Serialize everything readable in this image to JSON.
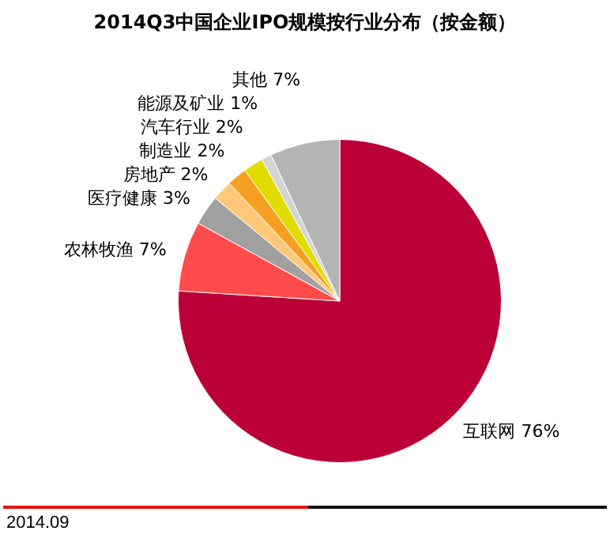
{
  "chart_data": {
    "type": "pie",
    "title": "2014Q3中国企业IPO规模按行业分布（按金额）",
    "categories": [
      "互联网",
      "农林牧渔",
      "医疗健康",
      "房地产",
      "制造业",
      "汽车行业",
      "能源及矿业",
      "其他"
    ],
    "values": [
      76,
      7,
      3,
      2,
      2,
      2,
      1,
      7
    ],
    "value_labels": [
      "76%",
      "7%",
      "3%",
      "2%",
      "2%",
      "2%",
      "1%",
      "7%"
    ],
    "colors": [
      "#bb0038",
      "#ff4b4b",
      "#a0a0a0",
      "#ffc878",
      "#f5a020",
      "#e0dc00",
      "#d4d4d4",
      "#b4b4b4"
    ],
    "legend": false,
    "annotations": [
      "2014.09"
    ]
  }
}
